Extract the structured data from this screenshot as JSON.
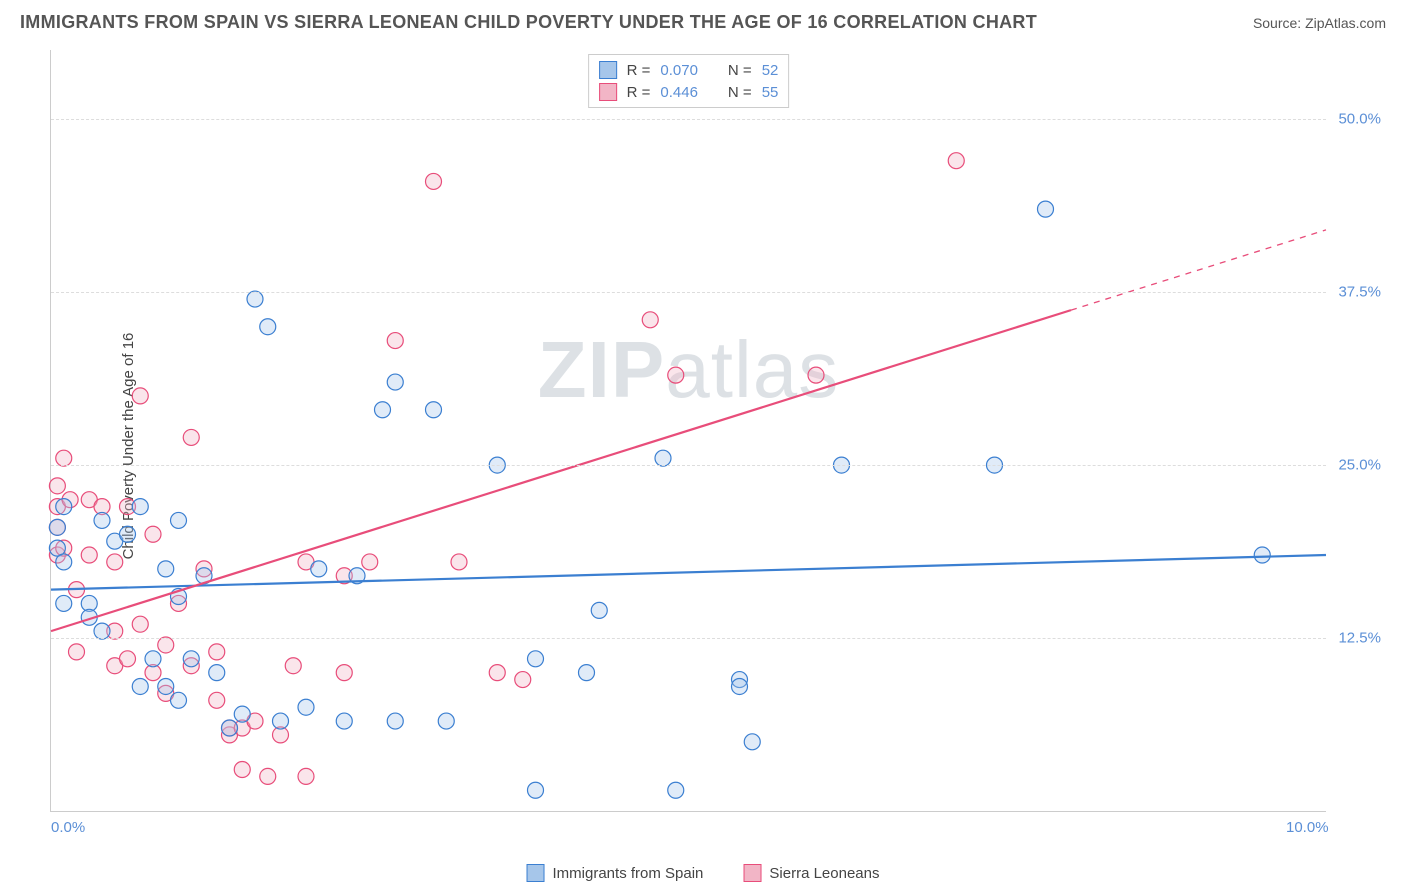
{
  "header": {
    "title": "IMMIGRANTS FROM SPAIN VS SIERRA LEONEAN CHILD POVERTY UNDER THE AGE OF 16 CORRELATION CHART",
    "source": "Source: ZipAtlas.com"
  },
  "chart": {
    "type": "scatter",
    "watermark": "ZIPatlas",
    "y_axis_label": "Child Poverty Under the Age of 16",
    "xlim": [
      0,
      10
    ],
    "ylim": [
      0,
      55
    ],
    "x_ticks": [
      {
        "val": 0,
        "label": "0.0%"
      },
      {
        "val": 10,
        "label": "10.0%"
      }
    ],
    "y_ticks": [
      {
        "val": 12.5,
        "label": "12.5%"
      },
      {
        "val": 25.0,
        "label": "25.0%"
      },
      {
        "val": 37.5,
        "label": "37.5%"
      },
      {
        "val": 50.0,
        "label": "50.0%"
      }
    ],
    "grid_color": "#dddddd",
    "background_color": "#ffffff",
    "marker_radius": 8,
    "marker_fill_opacity": 0.35,
    "marker_stroke_width": 1.2,
    "line_stroke_width": 2.2,
    "series": [
      {
        "name": "Immigrants from Spain",
        "color_stroke": "#3b7fd1",
        "color_fill": "#a6c6ea",
        "r_value": "0.070",
        "n_value": "52",
        "trend": {
          "x1": 0,
          "y1": 16.0,
          "x2": 10,
          "y2": 18.5,
          "solid_until_x": 10
        },
        "points": [
          [
            0.05,
            20.5
          ],
          [
            0.05,
            19.0
          ],
          [
            0.1,
            15.0
          ],
          [
            0.1,
            18.0
          ],
          [
            0.1,
            22.0
          ],
          [
            0.3,
            15.0
          ],
          [
            0.3,
            14.0
          ],
          [
            0.4,
            21.0
          ],
          [
            0.4,
            13.0
          ],
          [
            0.5,
            19.5
          ],
          [
            0.6,
            20.0
          ],
          [
            0.7,
            9.0
          ],
          [
            0.7,
            22.0
          ],
          [
            0.8,
            11.0
          ],
          [
            0.9,
            17.5
          ],
          [
            0.9,
            9.0
          ],
          [
            1.0,
            15.5
          ],
          [
            1.0,
            21.0
          ],
          [
            1.0,
            8.0
          ],
          [
            1.1,
            11.0
          ],
          [
            1.2,
            17.0
          ],
          [
            1.3,
            10.0
          ],
          [
            1.4,
            6.0
          ],
          [
            1.5,
            7.0
          ],
          [
            1.6,
            37.0
          ],
          [
            1.7,
            35.0
          ],
          [
            1.8,
            6.5
          ],
          [
            2.0,
            7.5
          ],
          [
            2.1,
            17.5
          ],
          [
            2.3,
            6.5
          ],
          [
            2.4,
            17.0
          ],
          [
            2.6,
            29.0
          ],
          [
            2.7,
            31.0
          ],
          [
            2.7,
            6.5
          ],
          [
            3.0,
            29.0
          ],
          [
            3.1,
            6.5
          ],
          [
            3.5,
            25.0
          ],
          [
            3.8,
            11.0
          ],
          [
            3.8,
            1.5
          ],
          [
            4.2,
            10.0
          ],
          [
            4.3,
            14.5
          ],
          [
            4.8,
            25.5
          ],
          [
            4.9,
            1.5
          ],
          [
            5.4,
            9.5
          ],
          [
            5.4,
            9.0
          ],
          [
            5.5,
            5.0
          ],
          [
            6.2,
            25.0
          ],
          [
            7.4,
            25.0
          ],
          [
            7.8,
            43.5
          ],
          [
            9.5,
            18.5
          ]
        ]
      },
      {
        "name": "Sierra Leoneans",
        "color_stroke": "#e84d7a",
        "color_fill": "#f2b5c6",
        "r_value": "0.446",
        "n_value": "55",
        "trend": {
          "x1": 0,
          "y1": 13.0,
          "x2": 10,
          "y2": 42.0,
          "solid_until_x": 8.0
        },
        "points": [
          [
            0.05,
            23.5
          ],
          [
            0.05,
            22.0
          ],
          [
            0.05,
            20.5
          ],
          [
            0.05,
            18.5
          ],
          [
            0.1,
            25.5
          ],
          [
            0.1,
            19.0
          ],
          [
            0.15,
            22.5
          ],
          [
            0.2,
            16.0
          ],
          [
            0.2,
            11.5
          ],
          [
            0.3,
            22.5
          ],
          [
            0.3,
            18.5
          ],
          [
            0.4,
            22.0
          ],
          [
            0.5,
            18.0
          ],
          [
            0.5,
            13.0
          ],
          [
            0.5,
            10.5
          ],
          [
            0.6,
            22.0
          ],
          [
            0.6,
            11.0
          ],
          [
            0.7,
            30.0
          ],
          [
            0.7,
            13.5
          ],
          [
            0.8,
            10.0
          ],
          [
            0.8,
            20.0
          ],
          [
            0.9,
            12.0
          ],
          [
            0.9,
            8.5
          ],
          [
            1.0,
            15.0
          ],
          [
            1.1,
            27.0
          ],
          [
            1.1,
            10.5
          ],
          [
            1.2,
            17.5
          ],
          [
            1.3,
            11.5
          ],
          [
            1.3,
            8.0
          ],
          [
            1.4,
            5.5
          ],
          [
            1.4,
            6.0
          ],
          [
            1.5,
            6.0
          ],
          [
            1.5,
            3.0
          ],
          [
            1.6,
            6.5
          ],
          [
            1.7,
            2.5
          ],
          [
            1.8,
            5.5
          ],
          [
            1.9,
            10.5
          ],
          [
            2.0,
            18.0
          ],
          [
            2.0,
            2.5
          ],
          [
            2.3,
            17.0
          ],
          [
            2.3,
            10.0
          ],
          [
            2.5,
            18.0
          ],
          [
            2.7,
            34.0
          ],
          [
            3.0,
            45.5
          ],
          [
            3.2,
            18.0
          ],
          [
            3.5,
            10.0
          ],
          [
            3.7,
            9.5
          ],
          [
            4.7,
            35.5
          ],
          [
            4.9,
            31.5
          ],
          [
            6.0,
            31.5
          ],
          [
            7.1,
            47.0
          ]
        ]
      }
    ],
    "stats_legend": {
      "r_label": "R =",
      "n_label": "N ="
    }
  },
  "bottom_legend_labels": {
    "series1": "Immigrants from Spain",
    "series2": "Sierra Leoneans"
  }
}
